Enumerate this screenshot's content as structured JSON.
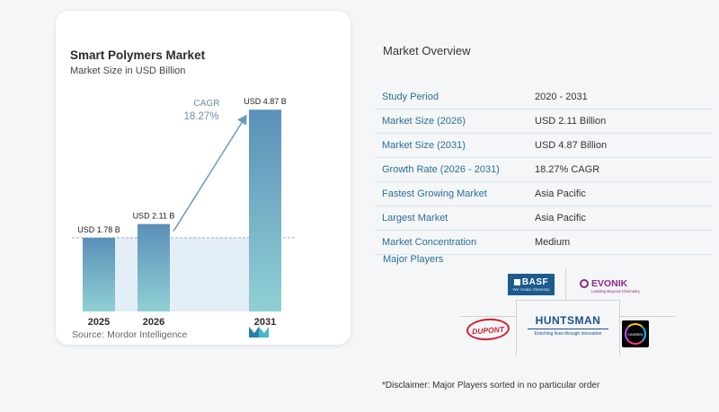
{
  "chart_data": {
    "type": "bar",
    "title": "Smart Polymers Market",
    "subtitle": "Market Size in USD Billion",
    "categories": [
      "2025",
      "2026",
      "2031"
    ],
    "values": [
      1.78,
      2.11,
      4.87
    ],
    "data_labels": [
      "USD 1.78 B",
      "USD 2.11 B",
      "USD 4.87 B"
    ],
    "ylim": [
      0,
      5.2
    ],
    "grid": false,
    "annotation": {
      "label": "CAGR",
      "value": "18.27%"
    },
    "colors": {
      "bar_top": "#5b8fb8",
      "bar_bottom": "#8fd0d4",
      "band": "#e3eef6",
      "arrow": "#6a9ac0"
    }
  },
  "source": "Source:  Mordor Intelligence",
  "overview": {
    "title": "Market Overview",
    "rows": [
      {
        "label": "Study Period",
        "value": "2020 - 2031"
      },
      {
        "label": "Market Size (2026)",
        "value": "USD 2.11 Billion"
      },
      {
        "label": "Market Size (2031)",
        "value": "USD 4.87 Billion"
      },
      {
        "label": "Growth Rate (2026 - 2031)",
        "value": "18.27% CAGR"
      },
      {
        "label": "Fastest Growing Market",
        "value": "Asia Pacific"
      },
      {
        "label": "Largest Market",
        "value": "Asia Pacific"
      },
      {
        "label": "Market Concentration",
        "value": "Medium"
      }
    ],
    "players_title": "Major Players",
    "disclaimer": "*Disclaimer: Major Players sorted in no particular order"
  },
  "players": {
    "basf": {
      "name": "BASF",
      "tagline": "We create chemistry"
    },
    "evonik": {
      "name": "EVONIK",
      "tagline": "Leading Beyond Chemistry"
    },
    "dupont": {
      "name": "DUPONT"
    },
    "huntsman": {
      "name": "HUNTSMAN",
      "tagline": "Enriching lives through innovation"
    },
    "covestro": {
      "name": "covestro"
    }
  }
}
